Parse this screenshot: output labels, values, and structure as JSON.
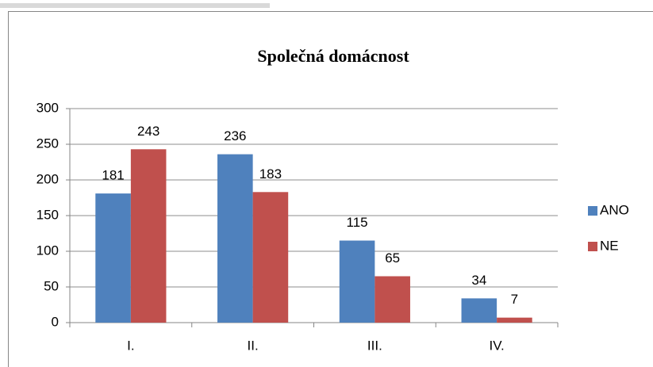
{
  "chart_data": {
    "type": "bar",
    "title": "Společná domácnost",
    "categories": [
      "I.",
      "II.",
      "III.",
      "IV."
    ],
    "series": [
      {
        "name": "ANO",
        "color": "#4f81bd",
        "values": [
          181,
          236,
          115,
          34
        ]
      },
      {
        "name": "NE",
        "color": "#c0504d",
        "values": [
          243,
          183,
          65,
          7
        ]
      }
    ],
    "ylim": [
      0,
      300
    ],
    "yticks": [
      0,
      50,
      100,
      150,
      200,
      250,
      300
    ],
    "grid": true,
    "legend": "right"
  }
}
